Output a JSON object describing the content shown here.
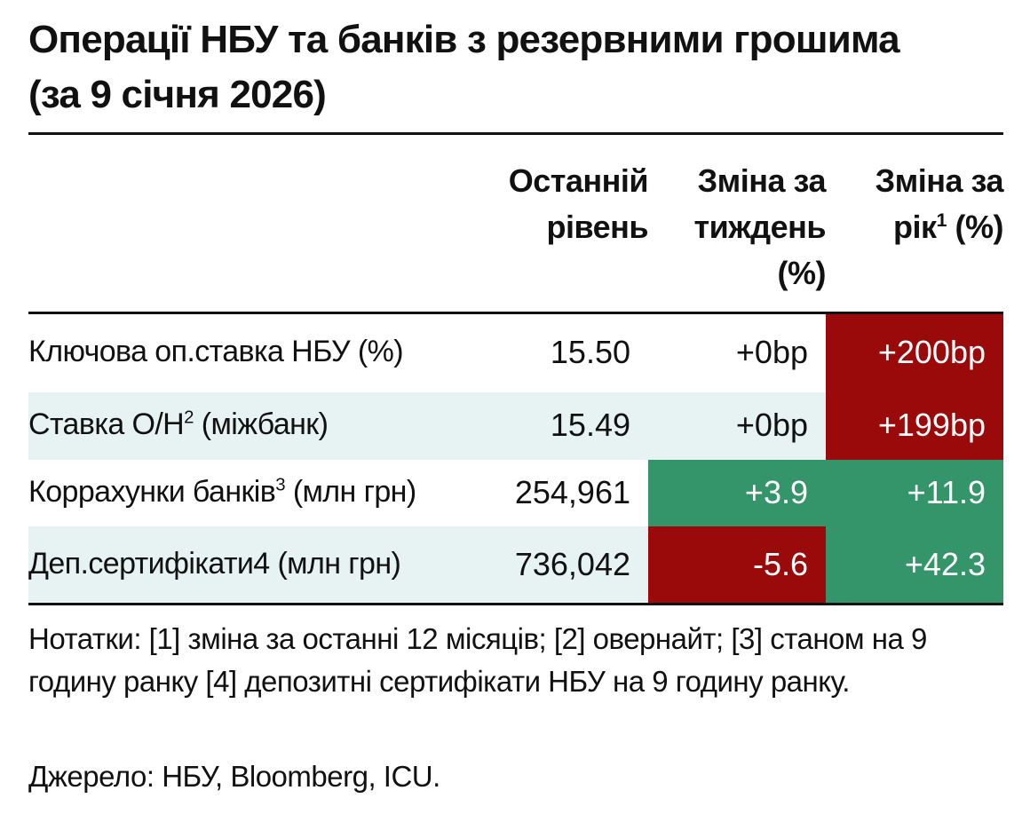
{
  "title": "Операції НБУ та банків з резервними грошима (за 9 січня 2026)",
  "table": {
    "columns": [
      {
        "text": "Останній рівень"
      },
      {
        "text": "Зміна за тиждень (%)"
      },
      {
        "text": "Зміна за рік",
        "sup": "1",
        "after": "(%)"
      }
    ],
    "rows": [
      {
        "label": "Ключова оп.ставка НБУ (%)",
        "cells": [
          {
            "value": "15.50"
          },
          {
            "value": "+0bp"
          },
          {
            "value": "+200bp",
            "color": "#9b0a0a"
          }
        ]
      },
      {
        "label": "Ставка О/Н",
        "sup": "2",
        "after": "(міжбанк)",
        "cells": [
          {
            "value": "15.49"
          },
          {
            "value": "+0bp"
          },
          {
            "value": "+199bp",
            "color": "#9b0a0a"
          }
        ]
      },
      {
        "label": "Коррахунки банків",
        "sup": "3",
        "after": "(млн грн)",
        "cells": [
          {
            "value": "254,961"
          },
          {
            "value": "+3.9",
            "color": "#35956a"
          },
          {
            "value": "+11.9",
            "color": "#35956a"
          }
        ]
      },
      {
        "label": "Деп.сертифікати4 (млн грн)",
        "cells": [
          {
            "value": "736,042"
          },
          {
            "value": "-5.6",
            "color": "#9b0a0a"
          },
          {
            "value": "+42.3",
            "color": "#35956a"
          }
        ]
      }
    ]
  },
  "notes": "Нотатки: [1] зміна за останні 12 місяців; [2] овернайт; [3] станом на 9 годину ранку [4] депозитні сертифікати НБУ на 9 годину ранку.",
  "source": "Джерело: НБУ, Bloomberg, ICU."
}
